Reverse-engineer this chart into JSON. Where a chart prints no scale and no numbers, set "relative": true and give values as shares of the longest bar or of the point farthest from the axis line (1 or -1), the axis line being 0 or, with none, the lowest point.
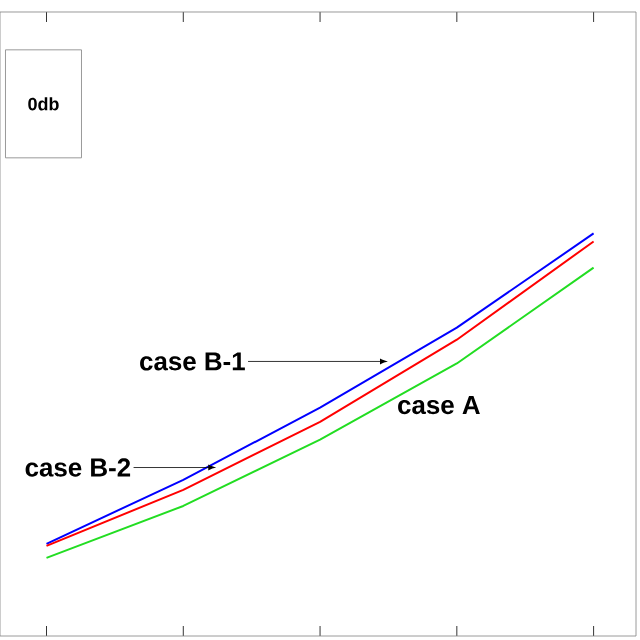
{
  "chart_data": {
    "type": "line",
    "relative": true,
    "categories": [
      null,
      null,
      null,
      null,
      null
    ],
    "series": [
      {
        "color": "#0000ff",
        "values": [
          0.229,
          0.388,
          0.567,
          0.766,
          1
        ]
      },
      {
        "color": "#ff0000",
        "values": [
          0.224,
          0.363,
          0.532,
          0.736,
          0.98
        ]
      },
      {
        "color": "#22dd22",
        "values": [
          0.194,
          0.323,
          0.488,
          0.677,
          0.915
        ]
      }
    ],
    "annotations": [
      "0db",
      "case B-1",
      "case B-2",
      "case A"
    ],
    "grid": false,
    "marker": "none",
    "line_style": "solid"
  }
}
